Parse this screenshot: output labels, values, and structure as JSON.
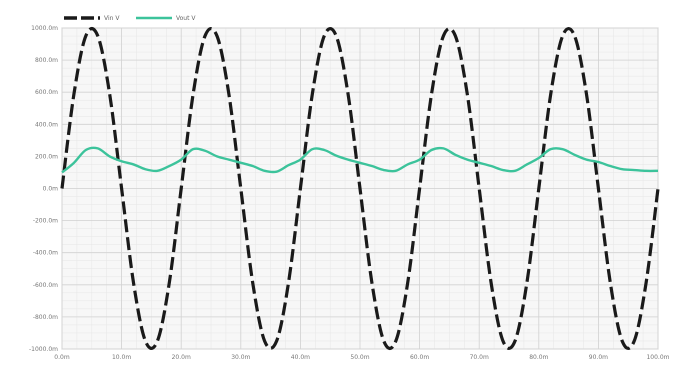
{
  "chart_data": {
    "type": "line",
    "title": "",
    "xlabel": "",
    "ylabel": "",
    "x_unit": "ms",
    "y_unit": "mV",
    "xlim": [
      0,
      100
    ],
    "ylim": [
      -1000,
      1000
    ],
    "grid": true,
    "legend_position": "top-left",
    "x_ticks": [
      {
        "value": 0,
        "label": "0.0m"
      },
      {
        "value": 10,
        "label": "10.0m"
      },
      {
        "value": 20,
        "label": "20.0m"
      },
      {
        "value": 30,
        "label": "30.0m"
      },
      {
        "value": 40,
        "label": "40.0m"
      },
      {
        "value": 50,
        "label": "50.0m"
      },
      {
        "value": 60,
        "label": "60.0m"
      },
      {
        "value": 70,
        "label": "70.0m"
      },
      {
        "value": 80,
        "label": "80.0m"
      },
      {
        "value": 90,
        "label": "90.0m"
      },
      {
        "value": 100,
        "label": "100.0m"
      }
    ],
    "y_ticks": [
      {
        "value": 1000,
        "label": "1000.0m"
      },
      {
        "value": 800,
        "label": "800.0m"
      },
      {
        "value": 600,
        "label": "600.0m"
      },
      {
        "value": 400,
        "label": "400.0m"
      },
      {
        "value": 200,
        "label": "200.0m"
      },
      {
        "value": 0,
        "label": "0.0m"
      },
      {
        "value": -200,
        "label": "-200.0m"
      },
      {
        "value": -400,
        "label": "-400.0m"
      },
      {
        "value": -600,
        "label": "-600.0m"
      },
      {
        "value": -800,
        "label": "-800.0m"
      },
      {
        "value": -1000,
        "label": "-1000.0m"
      }
    ],
    "series": [
      {
        "name": "Vin V",
        "color": "#1a1a1a",
        "style": "dashed",
        "x": [
          0,
          2,
          4,
          6,
          8,
          10,
          12,
          14,
          16,
          18,
          20,
          22,
          24,
          26,
          28,
          30,
          32,
          34,
          36,
          38,
          40,
          42,
          44,
          46,
          48,
          50,
          52,
          54,
          56,
          58,
          60,
          62,
          64,
          66,
          68,
          70,
          72,
          74,
          76,
          78,
          80,
          82,
          84,
          86,
          88,
          90,
          92,
          94,
          96,
          98,
          100
        ],
        "y": [
          0,
          588,
          951,
          951,
          588,
          0,
          -588,
          -951,
          -951,
          -588,
          0,
          588,
          951,
          951,
          588,
          0,
          -588,
          -951,
          -951,
          -588,
          0,
          588,
          951,
          951,
          588,
          0,
          -588,
          -951,
          -951,
          -588,
          0,
          588,
          951,
          951,
          588,
          0,
          -588,
          -951,
          -951,
          -588,
          0,
          588,
          951,
          951,
          588,
          0,
          -588,
          -951,
          -951,
          -588,
          0
        ]
      },
      {
        "name": "Vout V",
        "color": "#3cc39b",
        "style": "solid",
        "x": [
          0,
          2,
          4,
          6,
          8,
          10,
          12,
          14,
          16,
          18,
          20,
          22,
          24,
          26,
          28,
          30,
          32,
          34,
          36,
          38,
          40,
          42,
          44,
          46,
          48,
          50,
          52,
          54,
          56,
          58,
          60,
          62,
          64,
          66,
          68,
          70,
          72,
          74,
          76,
          78,
          80,
          82,
          84,
          86,
          88,
          90,
          92,
          94,
          96,
          98,
          100
        ],
        "y": [
          100,
          160,
          240,
          250,
          200,
          170,
          150,
          120,
          110,
          140,
          180,
          245,
          235,
          200,
          180,
          160,
          140,
          110,
          105,
          145,
          180,
          245,
          240,
          205,
          180,
          160,
          140,
          115,
          110,
          150,
          180,
          240,
          250,
          210,
          180,
          160,
          140,
          115,
          110,
          150,
          190,
          245,
          245,
          210,
          180,
          165,
          140,
          120,
          115,
          110,
          110
        ]
      }
    ]
  }
}
